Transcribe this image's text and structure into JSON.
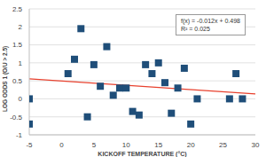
{
  "chart_data": {
    "type": "scatter",
    "x_label": "KICKOFF TEMPERATURE (°C)",
    "y_label": "LOG ODDS 1 (O/U > 2.5)",
    "x": [
      -5,
      -5,
      1,
      2,
      3,
      4,
      5,
      6,
      7,
      8,
      9,
      10,
      11,
      12,
      13,
      14,
      15,
      16,
      17,
      18,
      19,
      20,
      21,
      26,
      27,
      28
    ],
    "values": [
      0,
      -0.7,
      0.7,
      1.1,
      1.95,
      -0.5,
      0.95,
      0.35,
      1.45,
      0.1,
      0.3,
      0.3,
      -0.35,
      -0.45,
      0.95,
      0.7,
      1.0,
      0.45,
      -0.4,
      0.3,
      0.85,
      -0.7,
      0.0,
      0.0,
      0.7,
      0.0
    ],
    "color": "#1f4e79",
    "marker": "square",
    "xlim": [
      -5,
      30
    ],
    "xticks": [
      -5,
      0,
      5,
      10,
      15,
      20,
      25,
      30
    ],
    "ylim": [
      -1,
      2.5
    ],
    "yticks": [
      -1,
      -0.5,
      0,
      0.5,
      1,
      1.5,
      2,
      2.5
    ],
    "grid": true,
    "trendline": {
      "slope": -0.012,
      "intercept": 0.498,
      "color": "#e8412e"
    },
    "annotations": [
      "f(x) = -0.012x + 0.498",
      "R² = 0.025"
    ]
  }
}
